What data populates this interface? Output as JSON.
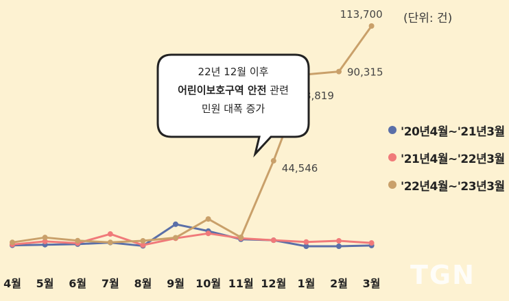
{
  "chart_data": {
    "type": "line",
    "unit_label": "(단위: 건)",
    "categories": [
      "4월",
      "5월",
      "6월",
      "7월",
      "8월",
      "9월",
      "10월",
      "11월",
      "12월",
      "1월",
      "2월",
      "3월"
    ],
    "series": [
      {
        "name": "'20년4월~'21년3월",
        "color": "#5a6fa8",
        "values": [
          1200,
          1500,
          1800,
          2600,
          900,
          12000,
          8500,
          4300,
          3800,
          700,
          700,
          1100
        ]
      },
      {
        "name": "'21년4월~'22년3월",
        "color": "#f07a7a",
        "values": [
          1600,
          3200,
          2300,
          7000,
          1300,
          4800,
          7300,
          4800,
          3800,
          2900,
          3500,
          2400
        ]
      },
      {
        "name": "'22년4월~'23년3월",
        "color": "#c9a06a",
        "values": [
          2700,
          5200,
          3600,
          2700,
          3500,
          5100,
          14700,
          5300,
          44546,
          88819,
          90315,
          113700
        ]
      }
    ],
    "data_labels": [
      {
        "series": 2,
        "index": 8,
        "text": "44,546"
      },
      {
        "series": 2,
        "index": 9,
        "text": "88,819"
      },
      {
        "series": 2,
        "index": 10,
        "text": "90,315"
      },
      {
        "series": 2,
        "index": 11,
        "text": "113,700"
      }
    ],
    "ylim": [
      0,
      113700
    ],
    "legend_position": "right",
    "annotation": {
      "line1": "22년 12월 이후",
      "line2_bold": "어린이보호구역 안전",
      "line2_rest": " 관련",
      "line3": "민원 대폭 증가"
    }
  },
  "watermark": "TGN"
}
